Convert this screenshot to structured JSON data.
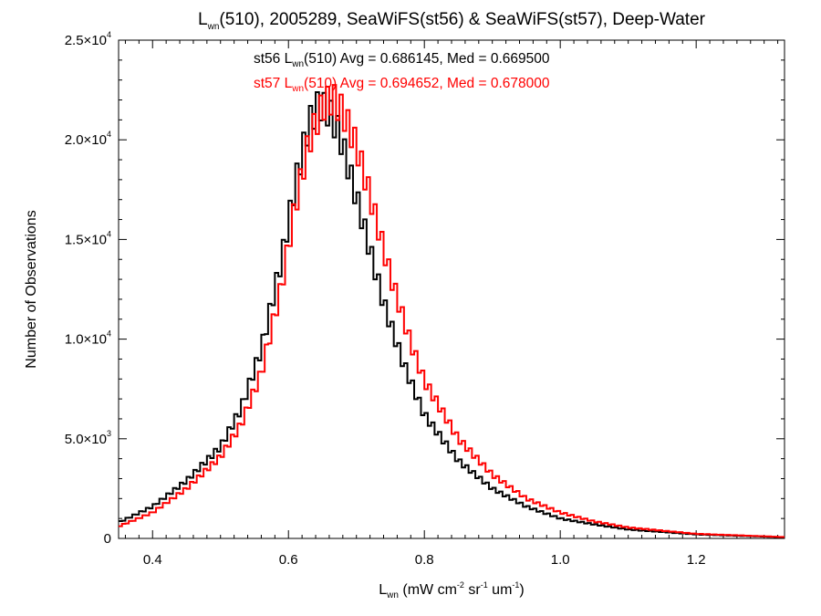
{
  "chart_data": {
    "type": "step",
    "title": {
      "prefix": "L",
      "prefix_sub": "wn",
      "rest": "(510), 2005289, SeaWiFS(st56) & SeaWiFS(st57), Deep-Water"
    },
    "xlabel": {
      "prefix": "L",
      "prefix_sub": "wn",
      "part1": " (mW cm",
      "sup1": "-2",
      "part2": " sr",
      "sup2": "-1",
      "part3": " um",
      "sup3": "-1",
      "part4": ")"
    },
    "ylabel": "Number of Observations",
    "xlim": [
      0.35,
      1.33
    ],
    "ylim": [
      0,
      25000
    ],
    "xticks": [
      "0.4",
      "0.6",
      "0.8",
      "1.0",
      "1.2"
    ],
    "xtick_values": [
      0.4,
      0.6,
      0.8,
      1.0,
      1.2
    ],
    "yticks": [
      {
        "value": 0,
        "mantissa": "0",
        "exp": ""
      },
      {
        "value": 5000,
        "mantissa": "5.0×10",
        "exp": "3"
      },
      {
        "value": 10000,
        "mantissa": "1.0×10",
        "exp": "4"
      },
      {
        "value": 15000,
        "mantissa": "1.5×10",
        "exp": "4"
      },
      {
        "value": 20000,
        "mantissa": "2.0×10",
        "exp": "4"
      },
      {
        "value": 25000,
        "mantissa": "2.5×10",
        "exp": "4"
      }
    ],
    "stats": [
      {
        "series": "st56",
        "pre": "st56 L",
        "sub": "wn",
        "post": "(510) Avg = 0.686145, Med = 0.669500",
        "color": "#000000"
      },
      {
        "series": "st57",
        "pre": "st57 L",
        "sub": "wn",
        "post": "(510) Avg = 0.694652, Med = 0.678000",
        "color": "#ff0000"
      }
    ],
    "bin_width": 0.005,
    "series": [
      {
        "name": "st56",
        "color": "#000000",
        "x": [
          0.35,
          0.4,
          0.45,
          0.5,
          0.53,
          0.56,
          0.59,
          0.61,
          0.63,
          0.645,
          0.66,
          0.675,
          0.69,
          0.71,
          0.74,
          0.77,
          0.8,
          0.85,
          0.9,
          0.95,
          1.0,
          1.05,
          1.1,
          1.2,
          1.33
        ],
        "y": [
          800,
          1600,
          2900,
          4600,
          6500,
          9500,
          14000,
          17800,
          20800,
          21800,
          21400,
          20300,
          18400,
          15800,
          11800,
          8700,
          6200,
          3900,
          2500,
          1600,
          1000,
          700,
          450,
          200,
          60
        ]
      },
      {
        "name": "st57",
        "color": "#ff0000",
        "x": [
          0.35,
          0.4,
          0.45,
          0.5,
          0.53,
          0.56,
          0.59,
          0.61,
          0.63,
          0.65,
          0.665,
          0.68,
          0.7,
          0.72,
          0.75,
          0.78,
          0.8,
          0.85,
          0.9,
          0.95,
          1.0,
          1.05,
          1.1,
          1.2,
          1.33
        ],
        "y": [
          600,
          1300,
          2500,
          4100,
          5700,
          8300,
          12700,
          16700,
          19900,
          21700,
          22100,
          21400,
          19700,
          17200,
          13200,
          9800,
          7900,
          5000,
          3200,
          2000,
          1300,
          850,
          550,
          230,
          70
        ]
      }
    ]
  }
}
